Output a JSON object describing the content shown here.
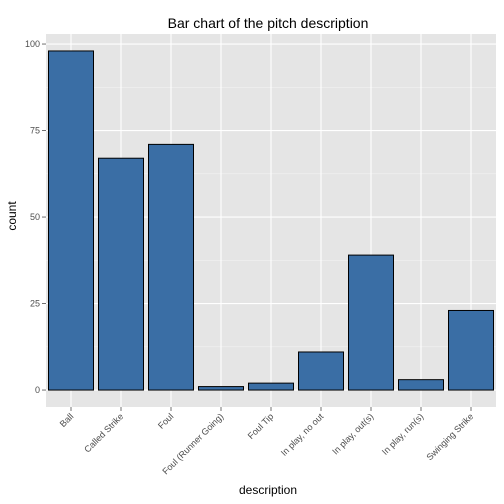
{
  "chart_data": {
    "type": "bar",
    "title": "Bar chart of the pitch description",
    "xlabel": "description",
    "ylabel": "count",
    "categories": [
      "Ball",
      "Called Strike",
      "Foul",
      "Foul (Runner Going)",
      "Foul Tip",
      "In play, no out",
      "In play, out(s)",
      "In play, run(s)",
      "Swinging Strike"
    ],
    "values": [
      98,
      67,
      71,
      1,
      2,
      11,
      39,
      3,
      23
    ],
    "ylim": [
      0,
      100
    ],
    "yticks": [
      0,
      25,
      50,
      75,
      100
    ],
    "grid": true,
    "legend": "none",
    "colors": {
      "bar_fill": "#3a6ea5",
      "bar_stroke": "#000000",
      "panel": "#e5e5e5",
      "grid_major": "#ffffff",
      "grid_minor": "#f2f2f2"
    }
  }
}
